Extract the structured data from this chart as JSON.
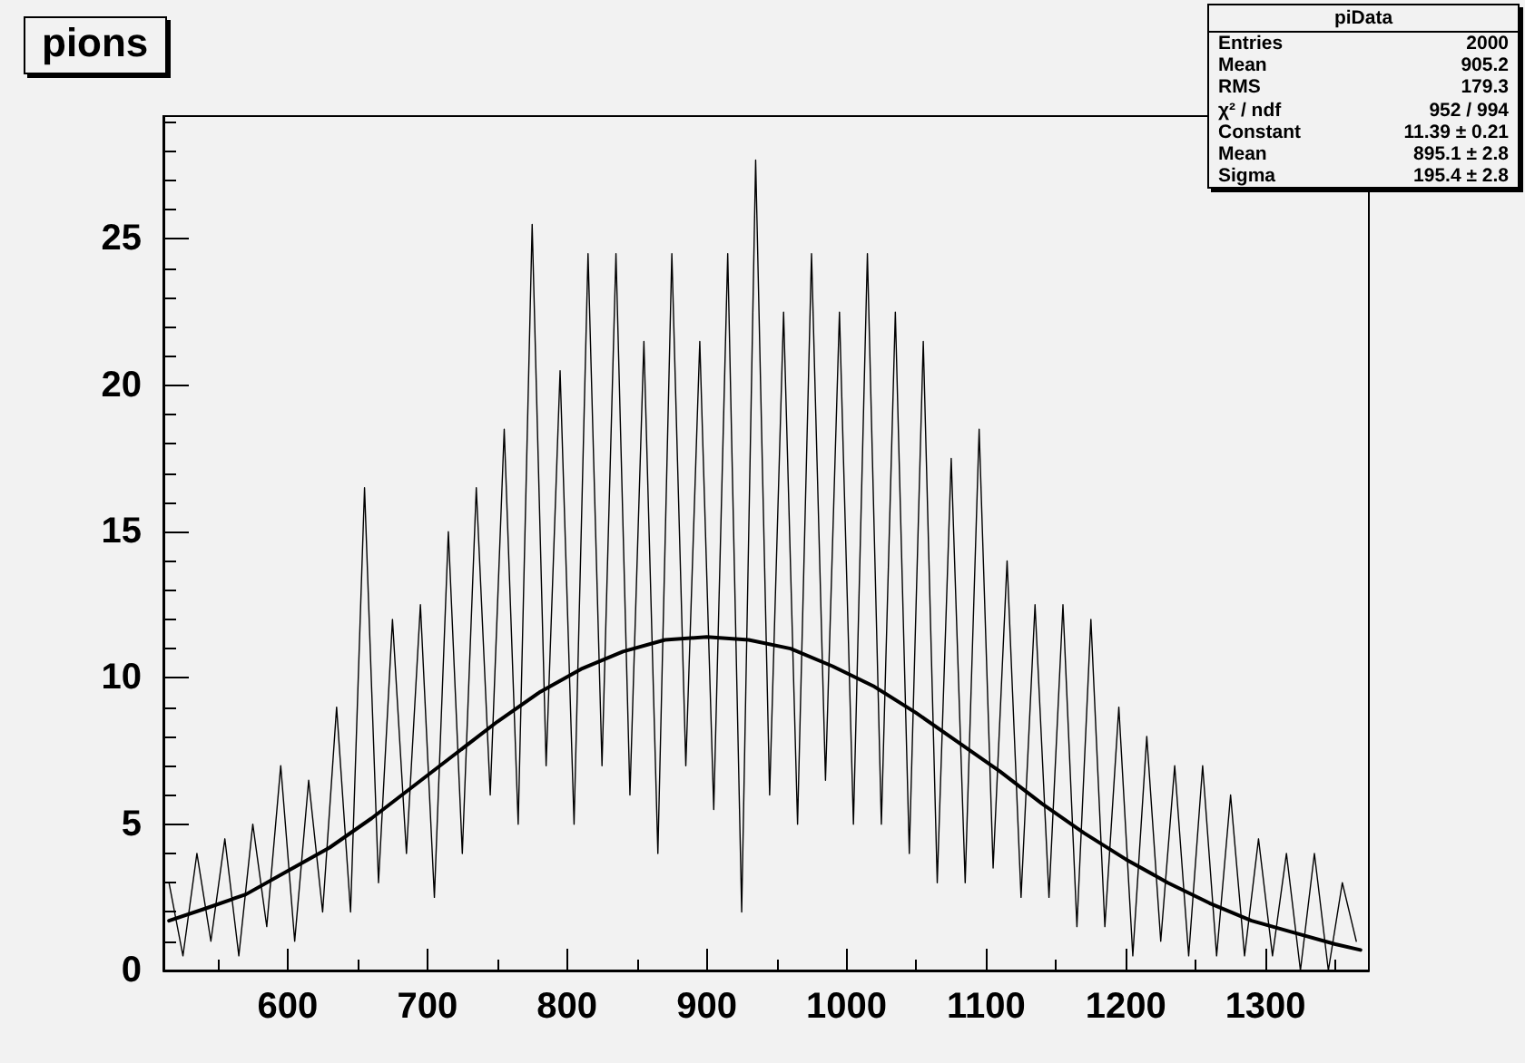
{
  "chart_data": {
    "type": "line",
    "title": "pions",
    "xlim": [
      511,
      1374
    ],
    "xticks": [
      600,
      700,
      800,
      900,
      1000,
      1100,
      1200,
      1300
    ],
    "ylim": [
      0,
      29.2
    ],
    "yticks": [
      0,
      5,
      10,
      15,
      20,
      25
    ],
    "marker": "none",
    "line_style": "solid",
    "series": [
      {
        "color": "#000000",
        "x": [
          515,
          525,
          535,
          545,
          555,
          565,
          575,
          585,
          595,
          605,
          615,
          625,
          635,
          645,
          655,
          665,
          675,
          685,
          695,
          705,
          715,
          725,
          735,
          745,
          755,
          765,
          775,
          785,
          795,
          805,
          815,
          825,
          835,
          845,
          855,
          865,
          875,
          885,
          895,
          905,
          915,
          925,
          935,
          945,
          955,
          965,
          975,
          985,
          995,
          1005,
          1015,
          1025,
          1035,
          1045,
          1055,
          1065,
          1075,
          1085,
          1095,
          1105,
          1115,
          1125,
          1135,
          1145,
          1155,
          1165,
          1175,
          1185,
          1195,
          1205,
          1215,
          1225,
          1235,
          1245,
          1255,
          1265,
          1275,
          1285,
          1295,
          1305,
          1315,
          1325,
          1335,
          1345,
          1355,
          1365
        ],
        "values": [
          3,
          0.5,
          4,
          1,
          4.5,
          0.5,
          5,
          1.5,
          7,
          1,
          6.5,
          2,
          9,
          2,
          16.5,
          3,
          12,
          4,
          12.5,
          2.5,
          15,
          4,
          16.5,
          6,
          18.5,
          5,
          25.5,
          7,
          20.5,
          5,
          24.5,
          7,
          24.5,
          6,
          21.5,
          4,
          24.5,
          7,
          21.5,
          5.5,
          24.5,
          2,
          27.7,
          6,
          22.5,
          5,
          24.5,
          6.5,
          22.5,
          5,
          24.5,
          5,
          22.5,
          4,
          21.5,
          3,
          17.5,
          3,
          18.5,
          3.5,
          14,
          2.5,
          12.5,
          2.5,
          12.5,
          1.5,
          12,
          1.5,
          9,
          0.5,
          8,
          1,
          7,
          0.5,
          7,
          0.5,
          6,
          0.5,
          4.5,
          0.5,
          4,
          0,
          4,
          0,
          3,
          1
        ]
      },
      {
        "color": "#000000",
        "x": [
          515,
          540,
          570,
          600,
          630,
          660,
          690,
          720,
          750,
          780,
          810,
          840,
          870,
          900,
          930,
          960,
          990,
          1020,
          1050,
          1080,
          1110,
          1140,
          1170,
          1200,
          1230,
          1260,
          1290,
          1320,
          1350,
          1368
        ],
        "values": [
          1.7,
          2.1,
          2.6,
          3.4,
          4.2,
          5.2,
          6.3,
          7.4,
          8.5,
          9.5,
          10.3,
          10.9,
          11.3,
          11.4,
          11.3,
          11.0,
          10.4,
          9.7,
          8.8,
          7.8,
          6.8,
          5.7,
          4.7,
          3.8,
          3.0,
          2.3,
          1.7,
          1.3,
          0.9,
          0.7
        ]
      }
    ],
    "annotations": [
      "piData",
      "Entries",
      "2000",
      "Mean",
      "905.2",
      "RMS",
      "179.3",
      "χ² / ndf",
      "952 / 994",
      "Constant",
      "11.39 ± 0.21",
      "Mean",
      "895.1 ± 2.8",
      "Sigma",
      "195.4 ± 2.8"
    ]
  }
}
